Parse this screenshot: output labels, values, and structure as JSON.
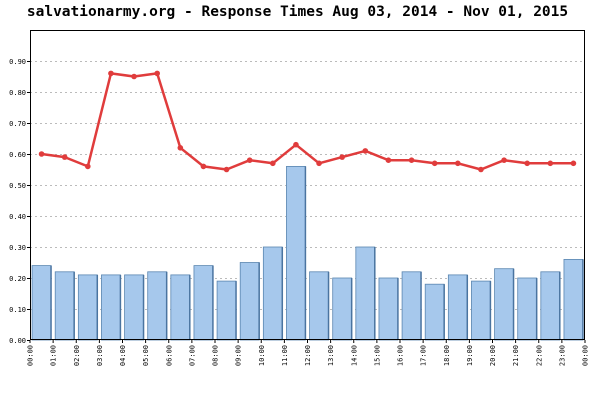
{
  "chart_data": {
    "type": "bar",
    "title": "salvationarmy.org - Response Times Aug 03, 2014 - Nov 01, 2015",
    "categories": [
      "00:00",
      "01:00",
      "02:00",
      "03:00",
      "04:00",
      "05:00",
      "06:00",
      "07:00",
      "08:00",
      "09:00",
      "10:00",
      "11:00",
      "12:00",
      "13:00",
      "14:00",
      "15:00",
      "16:00",
      "17:00",
      "18:00",
      "19:00",
      "20:00",
      "21:00",
      "22:00",
      "23:00"
    ],
    "x_end_label": "00:00",
    "series": [
      {
        "type": "bar",
        "color": "#a6c8ec",
        "values": [
          0.24,
          0.22,
          0.21,
          0.21,
          0.21,
          0.22,
          0.21,
          0.24,
          0.19,
          0.25,
          0.3,
          0.56,
          0.22,
          0.2,
          0.3,
          0.2,
          0.22,
          0.18,
          0.21,
          0.19,
          0.23,
          0.2,
          0.22,
          0.26
        ]
      },
      {
        "type": "line",
        "color": "#e03c3c",
        "values": [
          0.6,
          0.59,
          0.56,
          0.86,
          0.85,
          0.86,
          0.62,
          0.56,
          0.55,
          0.58,
          0.57,
          0.63,
          0.57,
          0.59,
          0.61,
          0.58,
          0.58,
          0.57,
          0.57,
          0.55,
          0.58,
          0.57,
          0.57,
          0.57
        ]
      }
    ],
    "ylim": [
      0,
      1.0
    ],
    "yticks": [
      "0.00",
      "0.10",
      "0.20",
      "0.30",
      "0.40",
      "0.50",
      "0.60",
      "0.70",
      "0.80",
      "0.90"
    ],
    "grid": true,
    "legend": "none"
  }
}
